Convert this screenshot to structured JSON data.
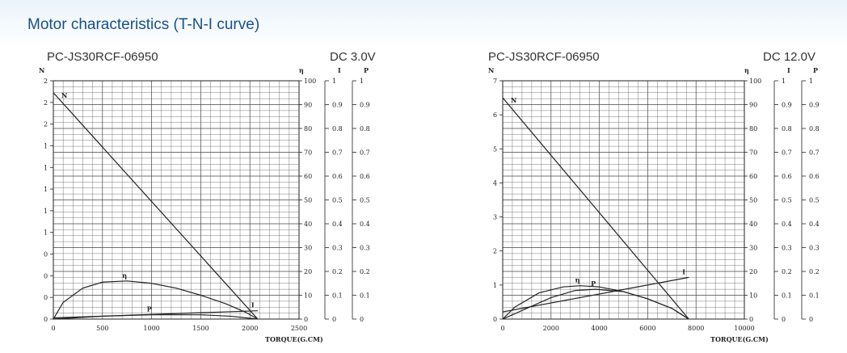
{
  "page": {
    "title": "Motor characteristics (T-N-I curve)"
  },
  "chart_data": [
    {
      "type": "line",
      "model": "PC-JS30RCF-06950",
      "voltage": "DC  3.0V",
      "xlabel": "TORQUE(G.CM)",
      "xlim": [
        0,
        2500
      ],
      "x_ticks": [
        "0",
        "500",
        "1000",
        "1500",
        "2000",
        "2500"
      ],
      "n_axis_label": "N",
      "n_ticks": [
        "0",
        "0",
        "0",
        "0",
        "1",
        "1",
        "1",
        "1",
        "1",
        "2",
        "2",
        "2"
      ],
      "eff_axis_label": "η",
      "eff_ticks": [
        "0",
        "10",
        "20",
        "30",
        "40",
        "50",
        "60",
        "70",
        "80",
        "90",
        "100"
      ],
      "i_axis_label": "I",
      "i_ticks": [
        "0",
        "0.1",
        "0.2",
        "0.3",
        "0.4",
        "0.5",
        "0.6",
        "0.7",
        "0.8",
        "0.9",
        "1"
      ],
      "p_axis_label": "P",
      "p_ticks": [
        "0",
        "0.1",
        "0.2",
        "0.3",
        "0.4",
        "0.5",
        "0.6",
        "0.7",
        "0.8",
        "0.9",
        "1"
      ],
      "series": [
        {
          "name": "N",
          "axis": "eff",
          "x": [
            0,
            2080
          ],
          "y": [
            95,
            0
          ]
        },
        {
          "name": "η",
          "axis": "eff",
          "x": [
            0,
            100,
            300,
            500,
            750,
            1000,
            1250,
            1500,
            1750,
            1950,
            2080
          ],
          "y": [
            0,
            7,
            13,
            15.5,
            16,
            15,
            13,
            10,
            6.5,
            3,
            0
          ]
        },
        {
          "name": "I",
          "axis": "eff",
          "x": [
            0,
            2080
          ],
          "y": [
            0.5,
            3.5
          ]
        },
        {
          "name": "P",
          "axis": "eff",
          "x": [
            0,
            500,
            1000,
            1500,
            1800,
            2080
          ],
          "y": [
            0,
            1.2,
            1.8,
            1.8,
            1.2,
            0
          ]
        }
      ],
      "series_labels": [
        "N",
        "η",
        "I",
        "P"
      ]
    },
    {
      "type": "line",
      "model": "PC-JS30RCF-06950",
      "voltage": "DC 12.0V",
      "xlabel": "TORQUE(G.CM)",
      "xlim": [
        0,
        10000
      ],
      "x_ticks": [
        "0",
        "2000",
        "4000",
        "6000",
        "8000",
        "10000"
      ],
      "n_axis_label": "N",
      "n_ticks": [
        "0",
        "1",
        "2",
        "3",
        "4",
        "5",
        "6",
        "7"
      ],
      "eff_axis_label": "η",
      "eff_ticks": [
        "0",
        "10",
        "20",
        "30",
        "40",
        "50",
        "60",
        "70",
        "80",
        "90",
        "100"
      ],
      "i_axis_label": "I",
      "i_ticks": [
        "0",
        "0.1",
        "0.2",
        "0.3",
        "0.4",
        "0.5",
        "0.6",
        "0.7",
        "0.8",
        "0.9",
        "1"
      ],
      "p_axis_label": "P",
      "p_ticks": [
        "0",
        "0.1",
        "0.2",
        "0.3",
        "0.4",
        "0.5",
        "0.6",
        "0.7",
        "0.8",
        "0.9",
        "1"
      ],
      "series": [
        {
          "name": "N",
          "axis": "n",
          "x": [
            0,
            7700
          ],
          "y": [
            6.5,
            0
          ]
        },
        {
          "name": "η",
          "axis": "eff",
          "x": [
            0,
            500,
            1500,
            2500,
            3200,
            4000,
            5000,
            6000,
            7000,
            7700
          ],
          "y": [
            0,
            5,
            11,
            13.5,
            14,
            13.5,
            11.5,
            8.5,
            4.5,
            0
          ]
        },
        {
          "name": "P",
          "axis": "eff",
          "x": [
            0,
            1000,
            2000,
            3000,
            3850,
            5000,
            6000,
            7000,
            7700
          ],
          "y": [
            0,
            4.5,
            9,
            12,
            12.5,
            11.5,
            8.5,
            4.5,
            0
          ]
        },
        {
          "name": "I",
          "axis": "eff",
          "x": [
            0,
            7700
          ],
          "y": [
            3,
            17.5
          ]
        }
      ],
      "series_labels": [
        "N",
        "η",
        "P",
        "I"
      ]
    }
  ]
}
